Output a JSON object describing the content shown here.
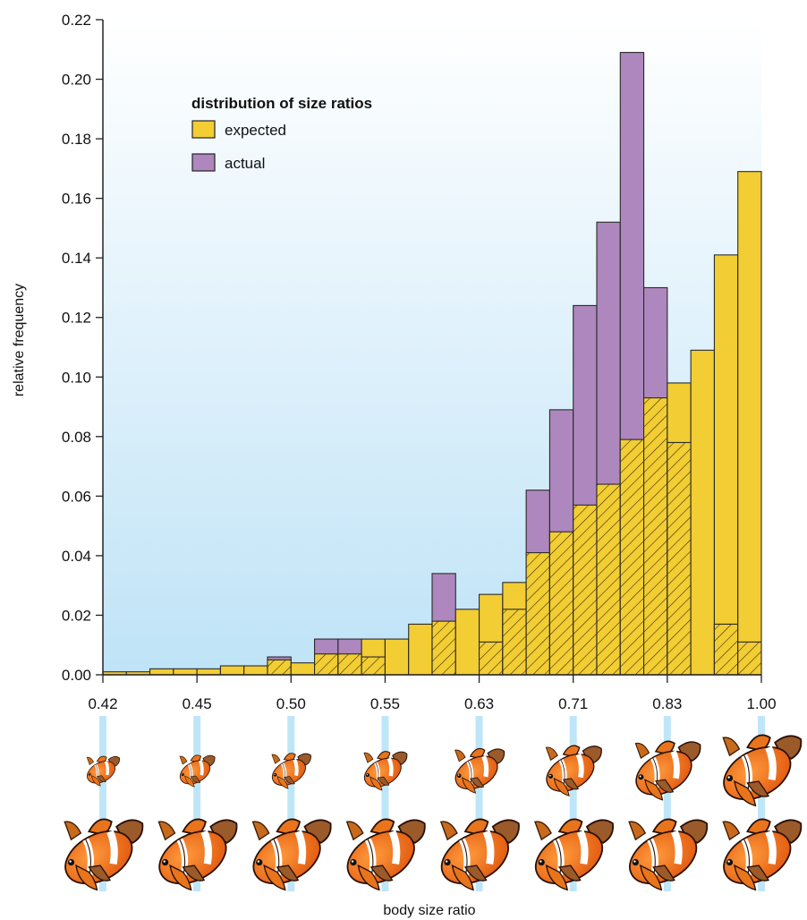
{
  "chart_data": {
    "type": "bar",
    "title": "",
    "xlabel": "body size ratio",
    "ylabel": "relative frequency",
    "ylim": [
      0,
      0.22
    ],
    "y_ticks": [
      "0.00",
      "0.02",
      "0.04",
      "0.06",
      "0.08",
      "0.10",
      "0.12",
      "0.14",
      "0.16",
      "0.18",
      "0.20",
      "0.22"
    ],
    "x_tick_labels": [
      "0.42",
      "0.45",
      "0.50",
      "0.55",
      "0.63",
      "0.71",
      "0.83",
      "1.00"
    ],
    "bin_count": 28,
    "legend": {
      "title": "distribution of size ratios",
      "placement": "top-left"
    },
    "series": [
      {
        "name": "expected",
        "color": "#f2cd33",
        "values": [
          0.001,
          0.001,
          0.002,
          0.002,
          0.002,
          0.003,
          0.003,
          0.005,
          0.004,
          0.007,
          0.007,
          0.012,
          0.012,
          0.017,
          0.018,
          0.022,
          0.027,
          0.031,
          0.041,
          0.048,
          0.057,
          0.064,
          0.079,
          0.093,
          0.098,
          0.109,
          0.141,
          0.169
        ]
      },
      {
        "name": "actual",
        "color": "#ad87bd",
        "values": [
          0,
          0,
          0,
          0,
          0,
          0,
          0,
          0.006,
          0,
          0.012,
          0.012,
          0.006,
          0,
          0,
          0.034,
          0,
          0.011,
          0.022,
          0.062,
          0.089,
          0.124,
          0.152,
          0.209,
          0.13,
          0.078,
          0,
          0.017,
          0.011
        ]
      }
    ],
    "overlap_style": "hatched",
    "background_gradient": [
      "#ffffff",
      "#bfe3f7"
    ],
    "fish_illustration": {
      "icon": "clownfish-icon",
      "rows": 2,
      "columns": 8,
      "top_row_scale_ratios": [
        0.42,
        0.45,
        0.5,
        0.55,
        0.63,
        0.71,
        0.83,
        1.0
      ]
    }
  }
}
